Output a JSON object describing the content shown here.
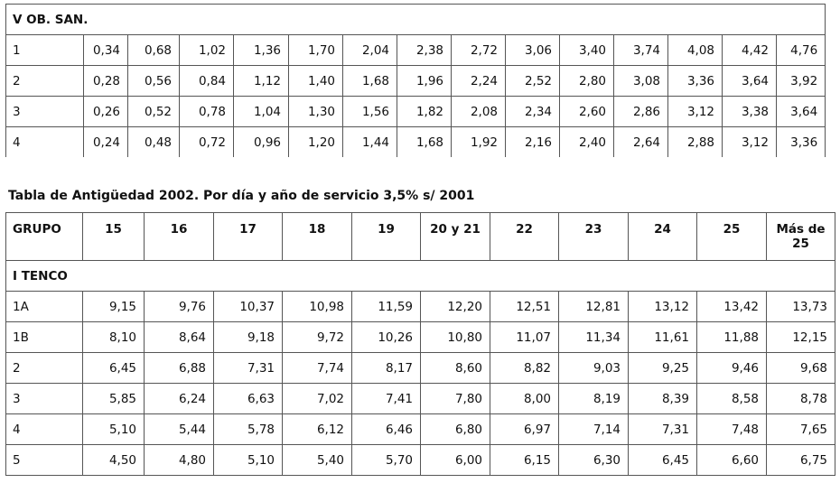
{
  "table1": {
    "section_title": "V OB. SAN.",
    "rows": [
      {
        "label": "1",
        "values": [
          "0,34",
          "0,68",
          "1,02",
          "1,36",
          "1,70",
          "2,04",
          "2,38",
          "2,72",
          "3,06",
          "3,40",
          "3,74",
          "4,08",
          "4,42",
          "4,76"
        ]
      },
      {
        "label": "2",
        "values": [
          "0,28",
          "0,56",
          "0,84",
          "1,12",
          "1,40",
          "1,68",
          "1,96",
          "2,24",
          "2,52",
          "2,80",
          "3,08",
          "3,36",
          "3,64",
          "3,92"
        ]
      },
      {
        "label": "3",
        "values": [
          "0,26",
          "0,52",
          "0,78",
          "1,04",
          "1,30",
          "1,56",
          "1,82",
          "2,08",
          "2,34",
          "2,60",
          "2,86",
          "3,12",
          "3,38",
          "3,64"
        ]
      },
      {
        "label": "4",
        "values": [
          "0,24",
          "0,48",
          "0,72",
          "0,96",
          "1,20",
          "1,44",
          "1,68",
          "1,92",
          "2,16",
          "2,40",
          "2,64",
          "2,88",
          "3,12",
          "3,36"
        ]
      }
    ]
  },
  "table2": {
    "caption": "Tabla de Antigüedad 2002. Por día y año de servicio 3,5% s/ 2001",
    "headers": [
      "GRUPO",
      "15",
      "16",
      "17",
      "18",
      "19",
      "20 y 21",
      "22",
      "23",
      "24",
      "25",
      "Más de 25"
    ],
    "section_title": "I TENCO",
    "rows": [
      {
        "label": "1A",
        "values": [
          "9,15",
          "9,76",
          "10,37",
          "10,98",
          "11,59",
          "12,20",
          "12,51",
          "12,81",
          "13,12",
          "13,42",
          "13,73"
        ]
      },
      {
        "label": "1B",
        "values": [
          "8,10",
          "8,64",
          "9,18",
          "9,72",
          "10,26",
          "10,80",
          "11,07",
          "11,34",
          "11,61",
          "11,88",
          "12,15"
        ]
      },
      {
        "label": "2",
        "values": [
          "6,45",
          "6,88",
          "7,31",
          "7,74",
          "8,17",
          "8,60",
          "8,82",
          "9,03",
          "9,25",
          "9,46",
          "9,68"
        ]
      },
      {
        "label": "3",
        "values": [
          "5,85",
          "6,24",
          "6,63",
          "7,02",
          "7,41",
          "7,80",
          "8,00",
          "8,19",
          "8,39",
          "8,58",
          "8,78"
        ]
      },
      {
        "label": "4",
        "values": [
          "5,10",
          "5,44",
          "5,78",
          "6,12",
          "6,46",
          "6,80",
          "6,97",
          "7,14",
          "7,31",
          "7,48",
          "7,65"
        ]
      },
      {
        "label": "5",
        "values": [
          "4,50",
          "4,80",
          "5,10",
          "5,40",
          "5,70",
          "6,00",
          "6,15",
          "6,30",
          "6,45",
          "6,60",
          "6,75"
        ]
      }
    ]
  }
}
